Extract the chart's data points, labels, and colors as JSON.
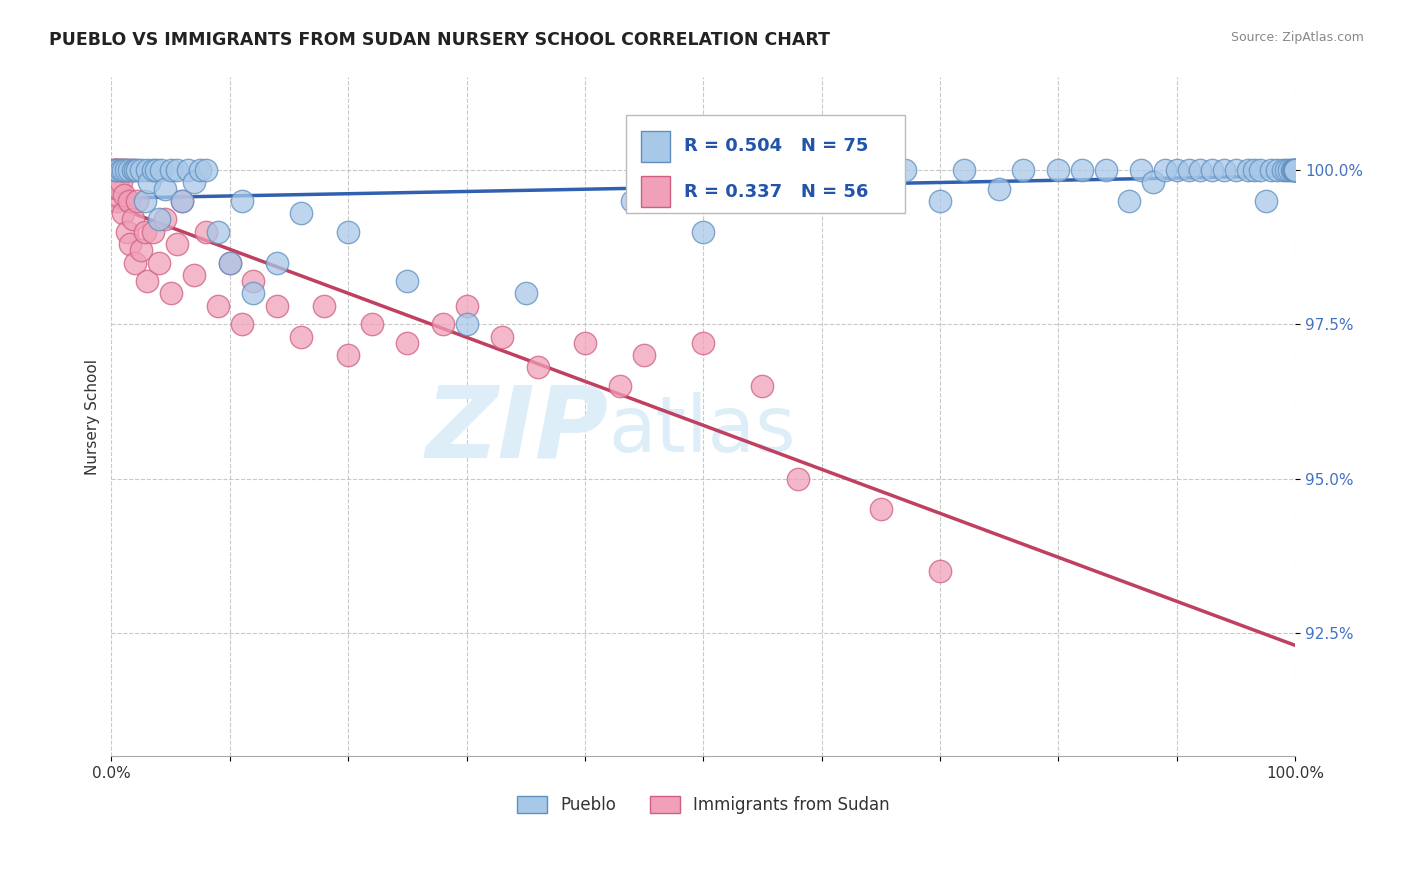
{
  "title": "PUEBLO VS IMMIGRANTS FROM SUDAN NURSERY SCHOOL CORRELATION CHART",
  "source": "Source: ZipAtlas.com",
  "ylabel": "Nursery School",
  "xlim": [
    0.0,
    100.0
  ],
  "ylim": [
    90.5,
    101.5
  ],
  "yticks": [
    92.5,
    95.0,
    97.5,
    100.0
  ],
  "ytick_labels": [
    "92.5%",
    "95.0%",
    "97.5%",
    "100.0%"
  ],
  "legend_blue_r": "R = 0.504",
  "legend_blue_n": "N = 75",
  "legend_pink_r": "R = 0.337",
  "legend_pink_n": "N = 56",
  "blue_color": "#A8C8E8",
  "pink_color": "#F0A0B8",
  "blue_edge": "#6090C0",
  "pink_edge": "#D06080",
  "blue_line_color": "#3060B0",
  "pink_line_color": "#C04060",
  "watermark_zip": "ZIP",
  "watermark_atlas": "atlas",
  "legend_label_blue": "Pueblo",
  "legend_label_pink": "Immigrants from Sudan",
  "blue_scatter_x": [
    0.3,
    0.5,
    0.8,
    1.0,
    1.2,
    1.5,
    1.8,
    2.0,
    2.2,
    2.5,
    2.8,
    3.0,
    3.2,
    3.5,
    3.8,
    4.0,
    4.2,
    4.5,
    5.0,
    5.5,
    6.0,
    6.5,
    7.0,
    7.5,
    8.0,
    9.0,
    10.0,
    11.0,
    12.0,
    14.0,
    16.0,
    20.0,
    25.0,
    30.0,
    35.0,
    44.0,
    47.0,
    50.0,
    55.0,
    60.0,
    63.0,
    65.0,
    67.0,
    70.0,
    72.0,
    75.0,
    77.0,
    80.0,
    82.0,
    84.0,
    86.0,
    87.0,
    88.0,
    89.0,
    90.0,
    91.0,
    92.0,
    93.0,
    94.0,
    95.0,
    96.0,
    96.5,
    97.0,
    97.5,
    98.0,
    98.5,
    99.0,
    99.2,
    99.5,
    99.7,
    99.8,
    99.9,
    100.0,
    100.0,
    100.0
  ],
  "blue_scatter_y": [
    100.0,
    100.0,
    100.0,
    100.0,
    100.0,
    100.0,
    100.0,
    100.0,
    100.0,
    100.0,
    99.5,
    100.0,
    99.8,
    100.0,
    100.0,
    99.2,
    100.0,
    99.7,
    100.0,
    100.0,
    99.5,
    100.0,
    99.8,
    100.0,
    100.0,
    99.0,
    98.5,
    99.5,
    98.0,
    98.5,
    99.3,
    99.0,
    98.2,
    97.5,
    98.0,
    99.5,
    100.0,
    99.0,
    99.5,
    100.0,
    100.0,
    100.0,
    100.0,
    99.5,
    100.0,
    99.7,
    100.0,
    100.0,
    100.0,
    100.0,
    99.5,
    100.0,
    99.8,
    100.0,
    100.0,
    100.0,
    100.0,
    100.0,
    100.0,
    100.0,
    100.0,
    100.0,
    100.0,
    99.5,
    100.0,
    100.0,
    100.0,
    100.0,
    100.0,
    100.0,
    100.0,
    100.0,
    100.0,
    100.0,
    100.0
  ],
  "pink_scatter_x": [
    0.1,
    0.2,
    0.3,
    0.4,
    0.5,
    0.5,
    0.6,
    0.6,
    0.7,
    0.8,
    0.9,
    1.0,
    1.0,
    1.1,
    1.2,
    1.3,
    1.4,
    1.5,
    1.6,
    1.7,
    1.8,
    2.0,
    2.2,
    2.5,
    2.8,
    3.0,
    3.5,
    4.0,
    4.5,
    5.0,
    5.5,
    6.0,
    7.0,
    8.0,
    9.0,
    10.0,
    11.0,
    12.0,
    14.0,
    16.0,
    18.0,
    20.0,
    22.0,
    25.0,
    28.0,
    30.0,
    33.0,
    36.0,
    40.0,
    43.0,
    45.0,
    50.0,
    55.0,
    58.0,
    65.0,
    70.0
  ],
  "pink_scatter_y": [
    100.0,
    100.0,
    100.0,
    100.0,
    100.0,
    99.5,
    100.0,
    99.7,
    100.0,
    99.8,
    100.0,
    100.0,
    99.3,
    99.6,
    100.0,
    99.0,
    100.0,
    99.5,
    98.8,
    100.0,
    99.2,
    98.5,
    99.5,
    98.7,
    99.0,
    98.2,
    99.0,
    98.5,
    99.2,
    98.0,
    98.8,
    99.5,
    98.3,
    99.0,
    97.8,
    98.5,
    97.5,
    98.2,
    97.8,
    97.3,
    97.8,
    97.0,
    97.5,
    97.2,
    97.5,
    97.8,
    97.3,
    96.8,
    97.2,
    96.5,
    97.0,
    97.2,
    96.5,
    95.0,
    94.5,
    93.5
  ]
}
